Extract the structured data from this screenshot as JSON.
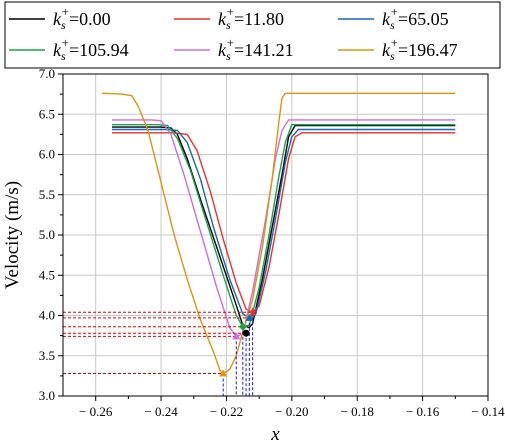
{
  "chart_data": {
    "type": "line",
    "xlabel": "x",
    "ylabel": "Velocity (m/s)",
    "xlim": [
      -0.27,
      -0.14
    ],
    "ylim": [
      3.0,
      7.0
    ],
    "xticks": [
      -0.26,
      -0.24,
      -0.22,
      -0.2,
      -0.18,
      -0.16,
      -0.14
    ],
    "xtick_labels": [
      "− 0.26",
      "− 0.24",
      "− 0.22",
      "− 0.20",
      "− 0.18",
      "− 0.16",
      "− 0.14"
    ],
    "yticks": [
      3.0,
      3.5,
      4.0,
      4.5,
      5.0,
      5.5,
      6.0,
      6.5,
      7.0
    ],
    "ytick_labels": [
      "3.0",
      "3.5",
      "4.0",
      "4.5",
      "5.0",
      "5.5",
      "6.0",
      "6.5",
      "7.0"
    ],
    "grid": true,
    "legend": {
      "placement": "top",
      "symbol": "k",
      "subscript": "s",
      "superscript": "+"
    },
    "series": [
      {
        "name": "=0.00",
        "color": "#000000",
        "x": [
          -0.255,
          -0.24,
          -0.237,
          -0.235,
          -0.232,
          -0.228,
          -0.223,
          -0.218,
          -0.215,
          -0.213,
          -0.212,
          -0.209,
          -0.206,
          -0.203,
          -0.201,
          -0.199,
          -0.18,
          -0.16,
          -0.15
        ],
        "y": [
          6.34,
          6.34,
          6.33,
          6.25,
          5.95,
          5.45,
          4.85,
          4.25,
          3.88,
          3.85,
          3.9,
          4.45,
          5.1,
          5.75,
          6.22,
          6.36,
          6.36,
          6.36,
          6.36
        ],
        "min": {
          "x": -0.214,
          "y": 3.78
        }
      },
      {
        "name": "=11.80",
        "color": "#e8322d",
        "x": [
          -0.255,
          -0.236,
          -0.232,
          -0.229,
          -0.225,
          -0.221,
          -0.217,
          -0.214,
          -0.212,
          -0.21,
          -0.207,
          -0.204,
          -0.201,
          -0.199,
          -0.197,
          -0.18,
          -0.16,
          -0.15
        ],
        "y": [
          6.27,
          6.27,
          6.25,
          6.05,
          5.55,
          4.95,
          4.4,
          4.08,
          4.04,
          4.12,
          4.6,
          5.25,
          5.95,
          6.22,
          6.27,
          6.27,
          6.27,
          6.27
        ],
        "min": {
          "x": -0.212,
          "y": 4.04
        }
      },
      {
        "name": "=65.05",
        "color": "#1a66b3",
        "x": [
          -0.255,
          -0.238,
          -0.235,
          -0.232,
          -0.228,
          -0.224,
          -0.219,
          -0.215,
          -0.213,
          -0.211,
          -0.208,
          -0.205,
          -0.202,
          -0.2,
          -0.198,
          -0.18,
          -0.16,
          -0.15
        ],
        "y": [
          6.31,
          6.31,
          6.3,
          6.15,
          5.7,
          5.1,
          4.45,
          4.02,
          3.97,
          4.02,
          4.55,
          5.2,
          5.9,
          6.22,
          6.31,
          6.31,
          6.31,
          6.31
        ],
        "min": {
          "x": -0.213,
          "y": 3.97
        }
      },
      {
        "name": "=105.94",
        "color": "#1ea24d",
        "x": [
          -0.255,
          -0.241,
          -0.238,
          -0.235,
          -0.231,
          -0.226,
          -0.221,
          -0.217,
          -0.215,
          -0.213,
          -0.21,
          -0.207,
          -0.204,
          -0.202,
          -0.2,
          -0.18,
          -0.16,
          -0.15
        ],
        "y": [
          6.37,
          6.37,
          6.36,
          6.2,
          5.8,
          5.15,
          4.5,
          4.0,
          3.86,
          3.88,
          4.35,
          5.0,
          5.72,
          6.15,
          6.37,
          6.37,
          6.37,
          6.37
        ],
        "min": {
          "x": -0.215,
          "y": 3.86
        }
      },
      {
        "name": "=141.21",
        "color": "#cc6ddb",
        "x": [
          -0.255,
          -0.243,
          -0.24,
          -0.237,
          -0.233,
          -0.228,
          -0.223,
          -0.219,
          -0.217,
          -0.215,
          -0.212,
          -0.208,
          -0.205,
          -0.203,
          -0.201,
          -0.18,
          -0.16,
          -0.15
        ],
        "y": [
          6.43,
          6.43,
          6.42,
          6.25,
          5.75,
          5.05,
          4.35,
          3.85,
          3.74,
          3.77,
          4.3,
          5.2,
          5.95,
          6.3,
          6.43,
          6.43,
          6.43,
          6.43
        ],
        "min": {
          "x": -0.217,
          "y": 3.74
        }
      },
      {
        "name": "=196.47",
        "color": "#dc9510",
        "x": [
          -0.258,
          -0.252,
          -0.249,
          -0.247,
          -0.244,
          -0.24,
          -0.236,
          -0.232,
          -0.228,
          -0.224,
          -0.222,
          -0.221,
          -0.219,
          -0.217,
          -0.215,
          -0.212,
          -0.209,
          -0.206,
          -0.204,
          -0.203,
          -0.202,
          -0.18,
          -0.16,
          -0.15
        ],
        "y": [
          6.76,
          6.75,
          6.73,
          6.6,
          6.3,
          5.65,
          5.0,
          4.45,
          3.95,
          3.55,
          3.32,
          3.28,
          3.33,
          3.5,
          3.8,
          4.2,
          4.85,
          5.7,
          6.4,
          6.7,
          6.76,
          6.76,
          6.76,
          6.76
        ],
        "min": {
          "x": -0.221,
          "y": 3.28
        }
      }
    ]
  }
}
